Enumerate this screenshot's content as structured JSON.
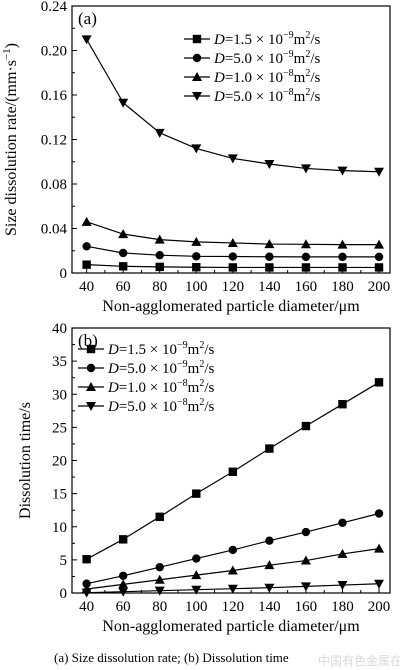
{
  "caption": "(a)   Size  dissolution rate; (b) Dissolution time",
  "watermark": "中国有色金属在线",
  "legend_items": [
    {
      "prefix": "D",
      "text": "=1.5 × 10",
      "exp": "−9",
      "unit": "m",
      "unit_exp": "2",
      "tail": "/s"
    },
    {
      "prefix": "D",
      "text": "=5.0 × 10",
      "exp": "−9",
      "unit": "m",
      "unit_exp": "2",
      "tail": "/s"
    },
    {
      "prefix": "D",
      "text": "=1.0 × 10",
      "exp": "−8",
      "unit": "m",
      "unit_exp": "2",
      "tail": "/s"
    },
    {
      "prefix": "D",
      "text": "=5.0 × 10",
      "exp": "−8",
      "unit": "m",
      "unit_exp": "2",
      "tail": "/s"
    }
  ],
  "chart_data": [
    {
      "type": "line",
      "panel_label": "(a)",
      "xlabel": "Non-agglomerated particle diameter/μm",
      "ylabel": "Size dissolution rate/(mm·s",
      "ylabel_exp": "−1",
      "ylabel_tail": ")",
      "x": [
        40,
        60,
        80,
        100,
        120,
        140,
        160,
        180,
        200
      ],
      "xlim": [
        32,
        206
      ],
      "xticks": [
        40,
        60,
        80,
        100,
        120,
        140,
        160,
        180,
        200
      ],
      "ylim": [
        0,
        0.24
      ],
      "yticks": [
        0,
        0.04,
        0.08,
        0.12,
        0.16,
        0.2,
        0.24
      ],
      "ytick_labels": [
        "0",
        "0.04",
        "0.08",
        "0.12",
        "0.16",
        "0.20",
        "0.24"
      ],
      "legend_position": "top-right",
      "grid": false,
      "series": [
        {
          "marker": "square",
          "values": [
            0.0075,
            0.006,
            0.0055,
            0.0052,
            0.005,
            0.005,
            0.005,
            0.005,
            0.005
          ]
        },
        {
          "marker": "circle",
          "values": [
            0.024,
            0.018,
            0.016,
            0.015,
            0.0148,
            0.0146,
            0.0145,
            0.0145,
            0.0145
          ]
        },
        {
          "marker": "triangle-up",
          "values": [
            0.046,
            0.035,
            0.03,
            0.028,
            0.027,
            0.026,
            0.0258,
            0.0255,
            0.0255
          ]
        },
        {
          "marker": "triangle-down",
          "values": [
            0.21,
            0.153,
            0.126,
            0.112,
            0.103,
            0.098,
            0.094,
            0.092,
            0.091
          ]
        }
      ]
    },
    {
      "type": "line",
      "panel_label": "(b)",
      "xlabel": "Non-agglomerated particle diameter/μm",
      "ylabel": "Dissolution time/s",
      "x": [
        40,
        60,
        80,
        100,
        120,
        140,
        160,
        180,
        200
      ],
      "xlim": [
        32,
        206
      ],
      "xticks": [
        40,
        60,
        80,
        100,
        120,
        140,
        160,
        180,
        200
      ],
      "ylim": [
        0,
        40
      ],
      "yticks": [
        0,
        5,
        10,
        15,
        20,
        25,
        30,
        35,
        40
      ],
      "ytick_labels": [
        "0",
        "5",
        "10",
        "15",
        "20",
        "25",
        "30",
        "35",
        "40"
      ],
      "legend_position": "top-left",
      "grid": false,
      "series": [
        {
          "marker": "square",
          "values": [
            5.1,
            8.1,
            11.5,
            15.0,
            18.3,
            21.8,
            25.2,
            28.5,
            31.8
          ]
        },
        {
          "marker": "circle",
          "values": [
            1.4,
            2.6,
            3.9,
            5.2,
            6.5,
            7.9,
            9.2,
            10.6,
            12.0
          ]
        },
        {
          "marker": "triangle-up",
          "values": [
            0.6,
            1.3,
            2.0,
            2.7,
            3.4,
            4.2,
            4.9,
            5.9,
            6.7
          ]
        },
        {
          "marker": "triangle-down",
          "values": [
            0.05,
            0.2,
            0.35,
            0.5,
            0.65,
            0.8,
            1.0,
            1.2,
            1.4
          ]
        }
      ]
    }
  ]
}
